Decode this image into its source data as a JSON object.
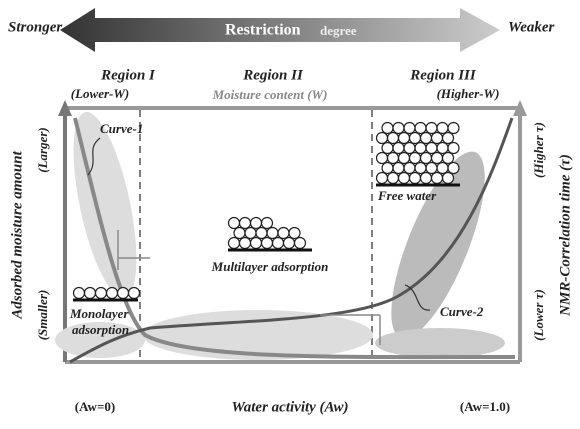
{
  "header": {
    "left": "Stronger",
    "center": "Restriction",
    "center_suffix": "degree",
    "right": "Weaker"
  },
  "regions": [
    {
      "title": "Region I",
      "note": "(Lower-W)"
    },
    {
      "title": "Region II",
      "note": "Moisture content (W)"
    },
    {
      "title": "Region III",
      "note": "(Higher-W)"
    }
  ],
  "left_axis": {
    "title": "Adsorbed moisture amount",
    "top": "(Larger)",
    "bottom": "(Smaller)"
  },
  "right_axis": {
    "title": "NMR-Correlation time (τ)",
    "top": "(Higher τ)",
    "bottom": "(Lower τ)"
  },
  "bottom_axis": {
    "left": "(Aw=0)",
    "title": "Water activity (Aw)",
    "right": "(Aw=1.0)"
  },
  "labels": {
    "curve1": "Curve-1",
    "curve2": "Curve-2",
    "monolayer_1": "Monolayer",
    "monolayer_2": "adsorption",
    "multilayer": "Multilayer adsorption",
    "free_water": "Free water"
  }
}
